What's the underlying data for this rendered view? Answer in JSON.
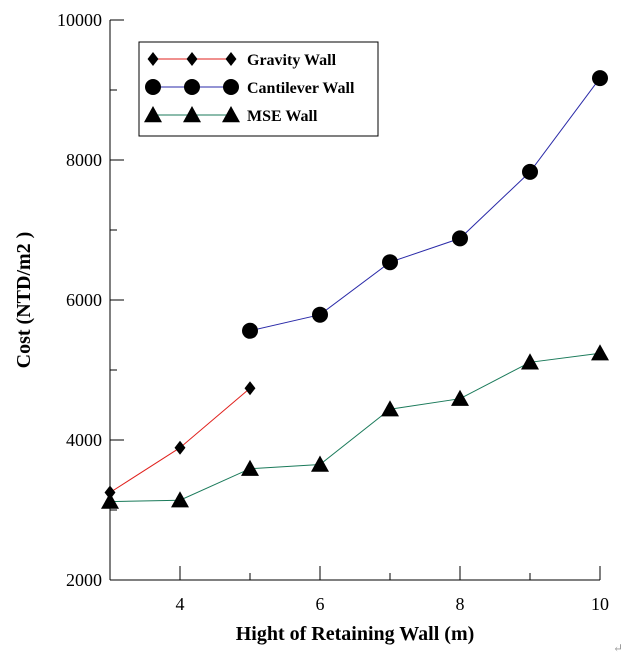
{
  "chart_data": {
    "type": "line",
    "title": "",
    "xlabel": "Hight of Retaining Wall (m)",
    "ylabel": "Cost  (NTD/m2 )",
    "xlim": [
      3,
      10
    ],
    "ylim": [
      2000,
      10000
    ],
    "x_ticks": [
      4,
      6,
      8,
      10
    ],
    "y_ticks": [
      2000,
      4000,
      6000,
      8000,
      10000
    ],
    "grid": false,
    "legend_position": "top-left",
    "series": [
      {
        "name": "Gravity Wall",
        "color": "#e0201c",
        "marker": "diamond",
        "x": [
          3,
          4,
          5
        ],
        "y": [
          3250,
          3890,
          4740
        ]
      },
      {
        "name": "Cantilever Wall",
        "color": "#2a2aa8",
        "marker": "circle",
        "x": [
          5,
          6,
          7,
          8,
          9,
          10
        ],
        "y": [
          5560,
          5790,
          6540,
          6880,
          7830,
          9170
        ]
      },
      {
        "name": "MSE Wall",
        "color": "#1a7a5a",
        "marker": "triangle",
        "x": [
          3,
          4,
          5,
          6,
          7,
          8,
          9,
          10
        ],
        "y": [
          3120,
          3140,
          3590,
          3650,
          4440,
          4590,
          5110,
          5240
        ]
      }
    ]
  },
  "corner_mark": "↵"
}
